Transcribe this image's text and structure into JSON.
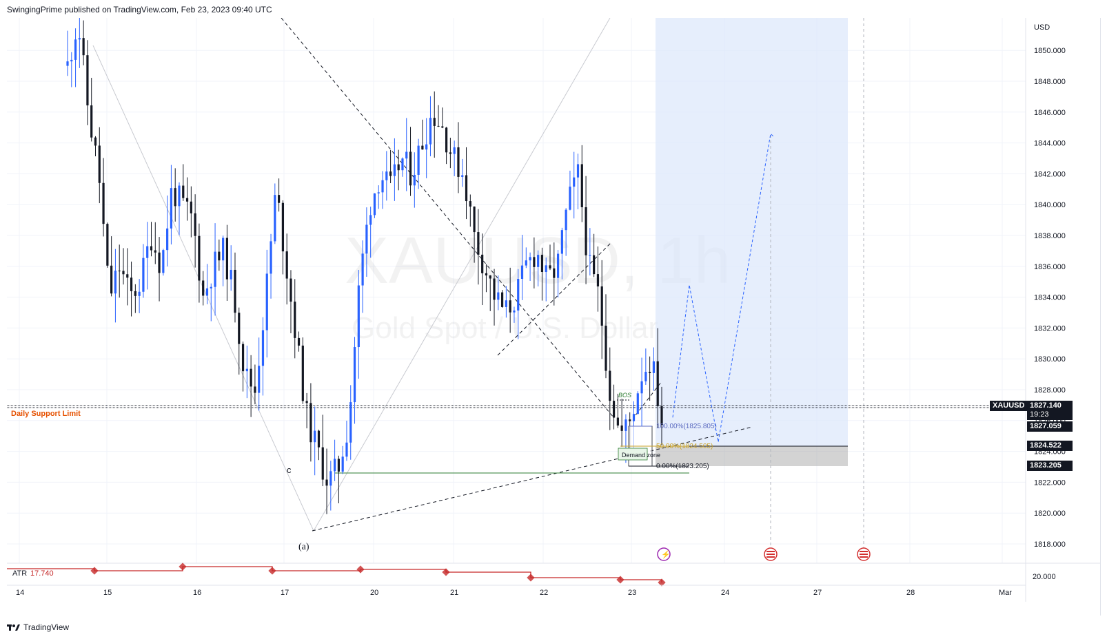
{
  "header": {
    "text": "SwingingPrime published on TradingView.com, Feb 23, 2023 09:40 UTC"
  },
  "footer": {
    "brand": "TradingView",
    "logo_icon": "tradingview-logo-icon"
  },
  "watermark": {
    "symbol": "XAUUSD, 1h",
    "name": "Gold Spot / U.S. Dollar"
  },
  "axis": {
    "currency": "USD"
  },
  "labels": {
    "daily_support": "Daily Support Limit",
    "wave_c": "c",
    "wave_a": "(a)",
    "bos": "BOS",
    "demand_zone": "Demand zone",
    "fib_100": "100.00%(1825.805)",
    "fib_50": "50.00%(1824.505)",
    "fib_0": "0.00%(1823.205)"
  },
  "tags": {
    "symbol": "XAUUSD",
    "last_price": "1827.140",
    "countdown": "19:23",
    "price_2": "1827.059",
    "price_3": "1824.522",
    "price_4": "1823.205"
  },
  "indicator": {
    "name": "ATR",
    "value": "17.740",
    "axis_label": "20.000"
  },
  "colors": {
    "up": "#2962ff",
    "down": "#131722",
    "support": "#e65100",
    "atr": "#c62828",
    "zone": "#dbe7fb",
    "demand": "#2e7d32",
    "fib": "#5c6bc0"
  },
  "chart_data": {
    "type": "candlestick",
    "symbol": "XAUUSD",
    "timeframe": "1h",
    "y_axis": {
      "unit": "USD",
      "ticks": [
        1818,
        1820,
        1822,
        1824,
        1826,
        1828,
        1830,
        1832,
        1834,
        1836,
        1838,
        1840,
        1842,
        1844,
        1846,
        1848,
        1850
      ],
      "ylim": [
        1816.3,
        1852.5
      ]
    },
    "x_axis": {
      "ticks": [
        "14",
        "15",
        "16",
        "17",
        "20",
        "21",
        "22",
        "23",
        "24",
        "27",
        "28",
        "Mar"
      ]
    },
    "close_path": [
      1849,
      1852,
      1846,
      1842,
      1834,
      1836,
      1834,
      1835,
      1838,
      1836,
      1841,
      1840,
      1839,
      1834,
      1836,
      1837,
      1834,
      1829,
      1828,
      1834,
      1841,
      1836,
      1831,
      1826,
      1824,
      1822,
      1823,
      1826,
      1835,
      1840,
      1842,
      1841,
      1843,
      1842,
      1844,
      1846,
      1845,
      1843,
      1842,
      1838,
      1836,
      1834,
      1833,
      1834,
      1836,
      1837,
      1835,
      1836,
      1840,
      1842,
      1836,
      1834,
      1828,
      1825,
      1826,
      1829,
      1830,
      1826
    ],
    "support_price": 1827.14,
    "fib_levels": [
      1825.805,
      1824.505,
      1823.205
    ],
    "projection": [
      1826.2,
      1834.8,
      1824.6,
      1844.6
    ],
    "atr": {
      "name": "ATR",
      "value": 17.74
    }
  }
}
